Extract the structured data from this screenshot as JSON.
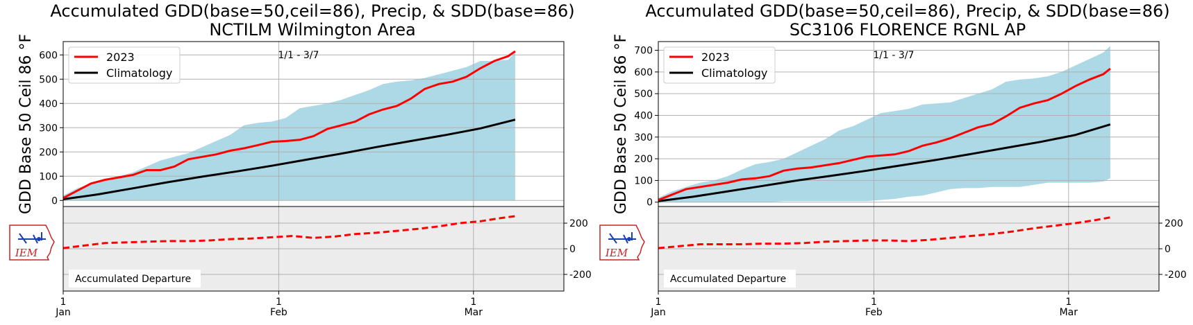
{
  "colors": {
    "observed": "#ff0000",
    "climatology": "#000000",
    "range_fill": "#add8e6",
    "departure": "#ff0000",
    "departure_bg": "#ececec",
    "grid": "#b0b0b0",
    "logo_red": "#cc2222",
    "logo_blue": "#1a3fb0"
  },
  "logo": {
    "text": "IEM"
  },
  "chart_data": [
    {
      "type": "line",
      "title": "Accumulated GDD(base=50,ceil=86), Precip, & SDD(base=86)",
      "subtitle": "NCTILM Wilmington Area",
      "ylabel": "GDD Base 50 Ceil 86 °F",
      "period_label": "1/1 - 3/7",
      "ylim": [
        -25,
        655
      ],
      "yticks": [
        0,
        100,
        200,
        300,
        400,
        500,
        600
      ],
      "xlim": [
        0,
        72
      ],
      "xticks": [
        {
          "day": 0,
          "label": "1",
          "month": "Jan"
        },
        {
          "day": 31,
          "label": "1",
          "month": "Feb"
        },
        {
          "day": 59,
          "label": "1",
          "month": "Mar"
        }
      ],
      "legend": {
        "position": "top-left",
        "entries": [
          "2023",
          "Climatology"
        ]
      },
      "range_band": {
        "x": [
          0,
          2,
          4,
          6,
          8,
          10,
          12,
          14,
          16,
          18,
          20,
          22,
          24,
          26,
          28,
          30,
          32,
          34,
          36,
          38,
          40,
          42,
          44,
          46,
          48,
          50,
          52,
          54,
          56,
          58,
          60,
          62,
          64,
          65
        ],
        "upper": [
          20,
          50,
          70,
          85,
          100,
          115,
          140,
          165,
          180,
          195,
          220,
          245,
          270,
          310,
          320,
          325,
          340,
          380,
          390,
          400,
          415,
          435,
          455,
          480,
          490,
          495,
          505,
          520,
          535,
          550,
          575,
          575,
          580,
          610
        ],
        "lower": [
          0,
          0,
          0,
          0,
          0,
          0,
          0,
          0,
          0,
          0,
          0,
          0,
          0,
          0,
          0,
          0,
          0,
          0,
          0,
          0,
          0,
          0,
          0,
          0,
          0,
          0,
          0,
          0,
          0,
          0,
          0,
          0,
          0,
          0
        ]
      },
      "series": [
        {
          "name": "2023",
          "x": [
            0,
            2,
            4,
            6,
            8,
            10,
            12,
            14,
            16,
            18,
            20,
            22,
            24,
            26,
            28,
            30,
            32,
            34,
            36,
            38,
            40,
            42,
            44,
            46,
            48,
            50,
            52,
            54,
            56,
            58,
            60,
            62,
            64,
            65
          ],
          "values": [
            10,
            40,
            70,
            85,
            95,
            105,
            125,
            125,
            140,
            170,
            180,
            190,
            205,
            215,
            228,
            242,
            245,
            250,
            265,
            295,
            310,
            325,
            355,
            375,
            390,
            420,
            460,
            480,
            490,
            510,
            545,
            575,
            595,
            615
          ]
        },
        {
          "name": "Climatology",
          "x": [
            0,
            5,
            10,
            15,
            20,
            25,
            30,
            35,
            40,
            45,
            50,
            55,
            60,
            65
          ],
          "values": [
            5,
            25,
            50,
            75,
            98,
            120,
            143,
            168,
            193,
            220,
            245,
            270,
            297,
            333
          ]
        }
      ],
      "departure": {
        "label": "Accumulated Departure",
        "ylim": [
          -330,
          330
        ],
        "yticks": [
          200,
          0,
          -200
        ],
        "x": [
          0,
          3,
          6,
          9,
          12,
          15,
          18,
          21,
          24,
          27,
          30,
          33,
          36,
          39,
          42,
          45,
          48,
          51,
          54,
          57,
          60,
          63,
          65
        ],
        "values": [
          5,
          25,
          45,
          50,
          55,
          60,
          60,
          65,
          75,
          80,
          90,
          100,
          85,
          95,
          115,
          125,
          140,
          155,
          175,
          200,
          215,
          240,
          255
        ]
      }
    },
    {
      "type": "line",
      "title": "Accumulated GDD(base=50,ceil=86), Precip, & SDD(base=86)",
      "subtitle": "SC3106 FLORENCE RGNL AP",
      "ylabel": "GDD Base 50 Ceil 86 °F",
      "period_label": "1/1 - 3/7",
      "ylim": [
        -20,
        740
      ],
      "yticks": [
        0,
        100,
        200,
        300,
        400,
        500,
        600,
        700
      ],
      "xlim": [
        0,
        72
      ],
      "xticks": [
        {
          "day": 0,
          "label": "1",
          "month": "Jan"
        },
        {
          "day": 31,
          "label": "1",
          "month": "Feb"
        },
        {
          "day": 59,
          "label": "1",
          "month": "Mar"
        }
      ],
      "legend": {
        "position": "top-left",
        "entries": [
          "2023",
          "Climatology"
        ]
      },
      "range_band": {
        "x": [
          0,
          2,
          4,
          6,
          8,
          10,
          12,
          14,
          16,
          18,
          20,
          22,
          24,
          26,
          28,
          30,
          32,
          34,
          36,
          38,
          40,
          42,
          44,
          46,
          48,
          50,
          52,
          54,
          56,
          58,
          60,
          62,
          64,
          65
        ],
        "upper": [
          20,
          50,
          70,
          90,
          100,
          120,
          150,
          175,
          185,
          200,
          230,
          260,
          290,
          330,
          350,
          380,
          410,
          420,
          430,
          450,
          455,
          460,
          480,
          500,
          520,
          555,
          565,
          570,
          580,
          600,
          630,
          660,
          690,
          720
        ],
        "lower": [
          0,
          0,
          0,
          0,
          0,
          0,
          0,
          0,
          0,
          5,
          5,
          5,
          5,
          5,
          5,
          5,
          10,
          15,
          25,
          30,
          45,
          60,
          65,
          65,
          70,
          70,
          70,
          80,
          90,
          90,
          90,
          90,
          95,
          110
        ]
      },
      "series": [
        {
          "name": "2023",
          "x": [
            0,
            2,
            4,
            6,
            8,
            10,
            12,
            14,
            16,
            18,
            20,
            22,
            24,
            26,
            28,
            30,
            32,
            34,
            36,
            38,
            40,
            42,
            44,
            46,
            48,
            50,
            52,
            54,
            56,
            58,
            60,
            62,
            64,
            65
          ],
          "values": [
            10,
            35,
            60,
            70,
            80,
            90,
            105,
            110,
            120,
            145,
            155,
            160,
            170,
            180,
            195,
            210,
            215,
            220,
            235,
            260,
            275,
            295,
            320,
            345,
            360,
            395,
            435,
            455,
            470,
            500,
            535,
            565,
            590,
            615
          ]
        },
        {
          "name": "Climatology",
          "x": [
            0,
            5,
            10,
            15,
            20,
            25,
            30,
            35,
            40,
            45,
            50,
            55,
            60,
            65
          ],
          "values": [
            5,
            25,
            50,
            75,
            100,
            122,
            145,
            170,
            195,
            222,
            250,
            278,
            310,
            358
          ]
        }
      ],
      "departure": {
        "label": "Accumulated Departure",
        "ylim": [
          -330,
          330
        ],
        "yticks": [
          200,
          0,
          -200
        ],
        "x": [
          0,
          3,
          6,
          9,
          12,
          15,
          18,
          21,
          24,
          27,
          30,
          33,
          36,
          39,
          42,
          45,
          48,
          51,
          54,
          57,
          60,
          63,
          65
        ],
        "values": [
          5,
          20,
          35,
          35,
          35,
          40,
          40,
          45,
          55,
          60,
          65,
          65,
          60,
          70,
          85,
          100,
          115,
          135,
          160,
          180,
          200,
          225,
          245
        ]
      }
    }
  ]
}
